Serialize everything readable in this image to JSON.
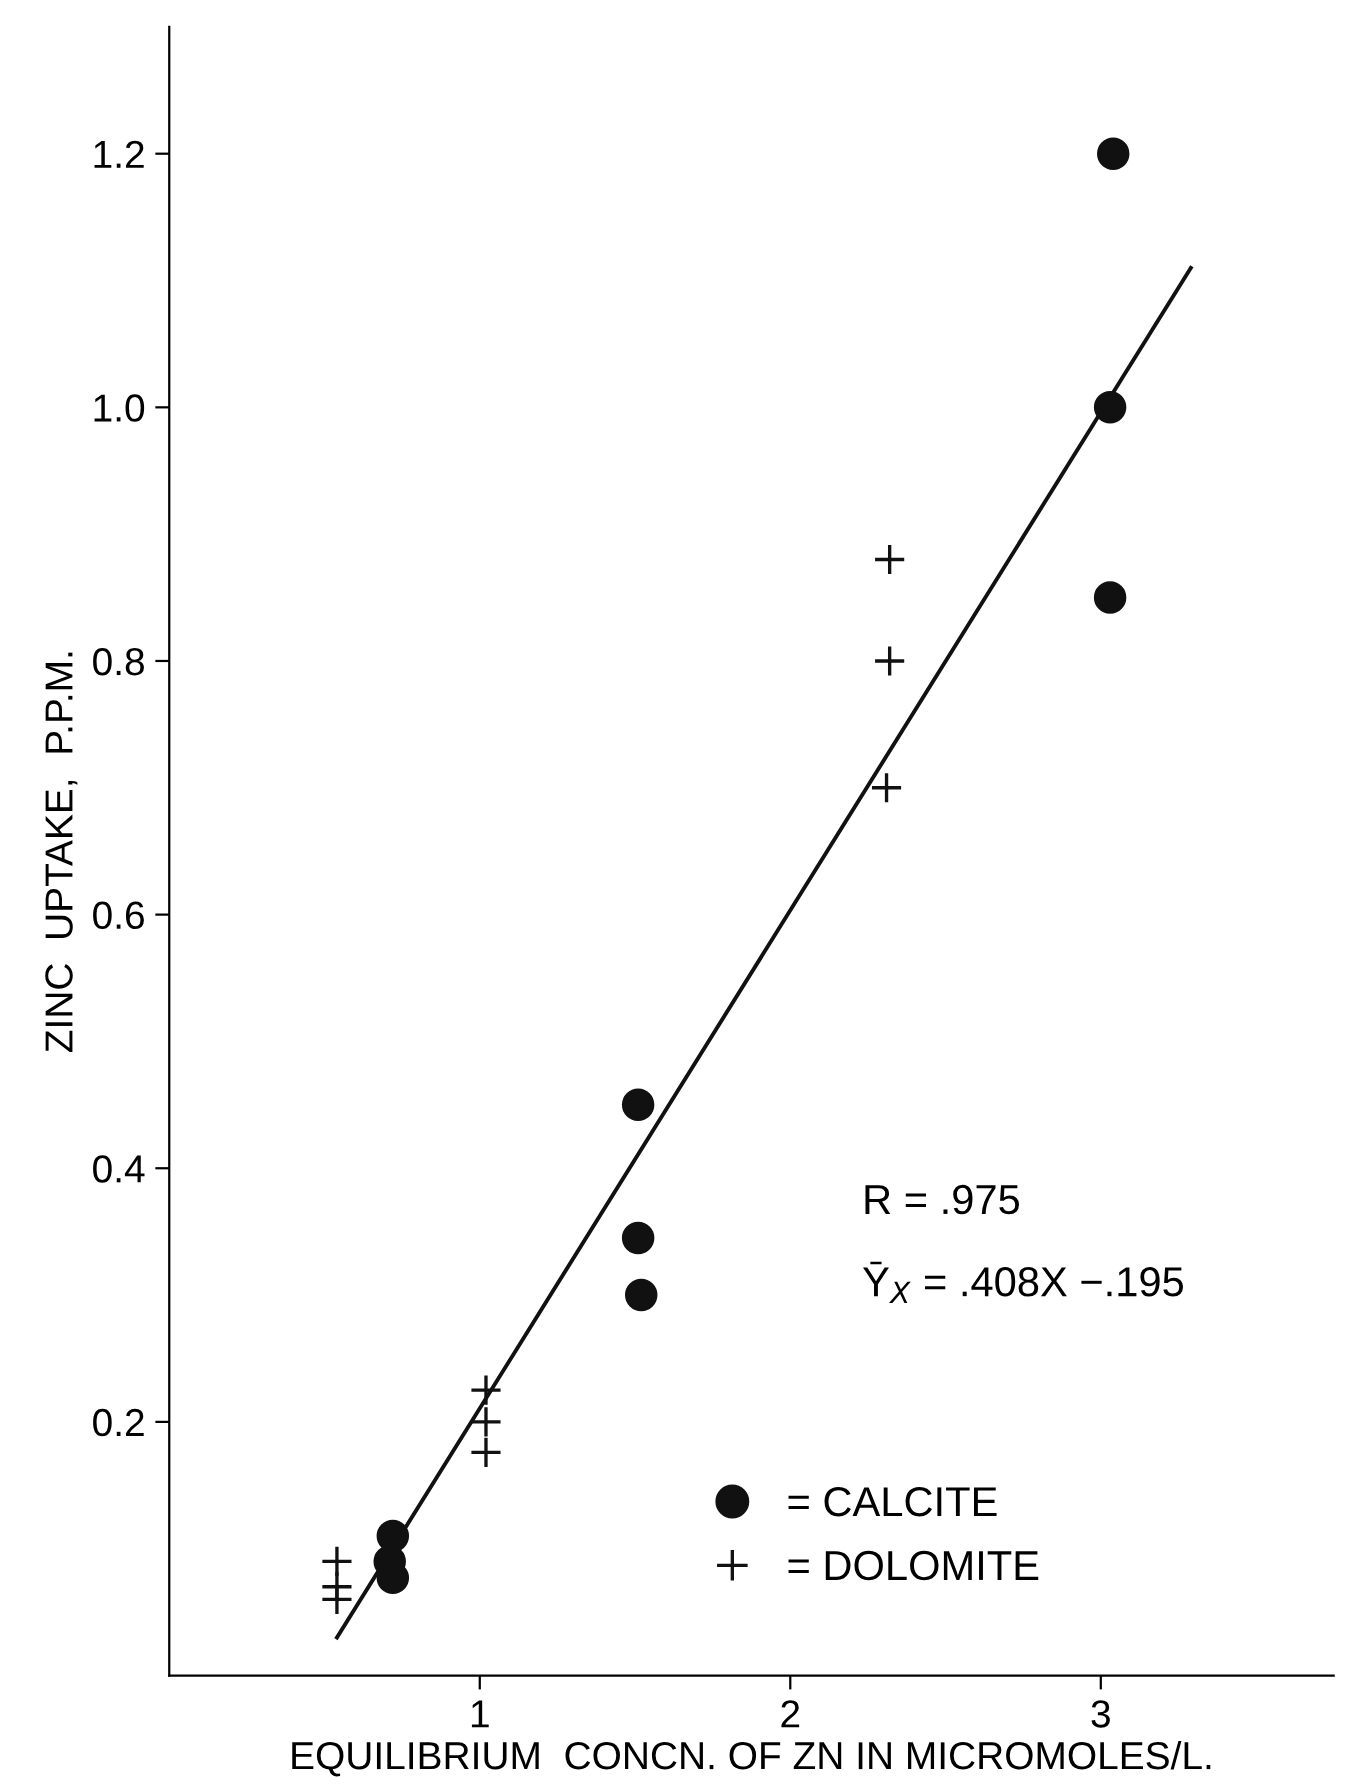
{
  "chart_data": {
    "type": "scatter",
    "xlabel": "EQUILIBRIUM  CONCN. OF ZN IN MICROMOLES/L.",
    "ylabel": "ZINC  UPTAKE,  P.P.M.",
    "annotations": [
      "R = .975",
      "Ȳ$_{X}$ = .408X −.195"
    ],
    "xlim": [
      0,
      3.75
    ],
    "ylim": [
      0,
      1.3
    ],
    "xticks": [
      1,
      2,
      3
    ],
    "yticks": [
      0.2,
      0.4,
      0.6,
      0.8,
      {
        "value": 1.0,
        "label": "1.0"
      },
      1.2
    ],
    "grid": false,
    "legend": "lower right",
    "series": [
      {
        "name": "= CALCITE",
        "color": "#111111",
        "marker": "circle",
        "x": [
          3.04,
          3.03,
          3.03,
          1.51,
          1.51,
          1.52,
          0.72,
          0.71,
          0.72
        ],
        "values": [
          1.2,
          1.0,
          0.85,
          0.45,
          0.345,
          0.3,
          0.11,
          0.09,
          0.077
        ]
      },
      {
        "name": "= DOLOMITE",
        "color": "#111111",
        "marker": "cross",
        "x": [
          2.32,
          2.32,
          2.31,
          1.02,
          1.02,
          1.02,
          0.54,
          0.54,
          0.54
        ],
        "values": [
          0.88,
          0.8,
          0.7,
          0.225,
          0.2,
          0.176,
          0.09,
          0.07,
          0.06
        ]
      },
      {
        "type": "line",
        "color": "#111111",
        "marker": "none",
        "line_style": "solid",
        "x": [
          0.54,
          3.29
        ],
        "values": [
          0.03,
          1.11
        ]
      }
    ]
  }
}
